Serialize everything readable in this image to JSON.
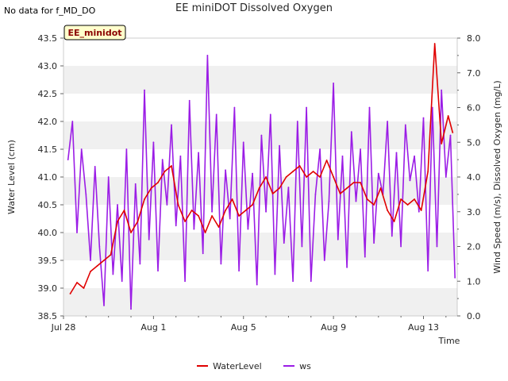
{
  "header": {
    "no_data_note": "No data for f_MD_DO",
    "title": "EE miniDOT Dissolved Oxygen"
  },
  "chart_data": {
    "type": "line",
    "title": "EE miniDOT Dissolved Oxygen",
    "badge": "EE_minidot",
    "xlabel": "Time",
    "ylabel_left": "Water Level (cm)",
    "ylabel_right": "Wind Speed (m/s), Dissolved Oxygen (mg/L)",
    "x_ticks": [
      "Jul 28",
      "Aug 1",
      "Aug 5",
      "Aug 9",
      "Aug 13"
    ],
    "x_range_days": [
      0,
      17.5
    ],
    "ylim_left": [
      38.5,
      43.5
    ],
    "ylim_right": [
      0.0,
      8.0
    ],
    "y_ticks_left": [
      "38.5",
      "39.0",
      "39.5",
      "40.0",
      "40.5",
      "41.0",
      "41.5",
      "42.0",
      "42.5",
      "43.0",
      "43.5"
    ],
    "y_ticks_right": [
      "0.0",
      "1.0",
      "2.0",
      "3.0",
      "4.0",
      "5.0",
      "6.0",
      "7.0",
      "8.0"
    ],
    "grid": "horizontal bands",
    "legend_position": "bottom-center",
    "colors": {
      "WaterLevel": "#e00000",
      "ws": "#9b1de6",
      "band": "#f0f0f0",
      "badge_bg": "#ffffcc",
      "badge_text": "#8b0000"
    },
    "series": [
      {
        "name": "WaterLevel",
        "axis": "left",
        "x": [
          0.3,
          0.6,
          0.9,
          1.2,
          1.5,
          1.8,
          2.1,
          2.4,
          2.7,
          3.0,
          3.3,
          3.6,
          3.9,
          4.2,
          4.5,
          4.8,
          5.1,
          5.4,
          5.7,
          6.0,
          6.3,
          6.6,
          6.9,
          7.2,
          7.5,
          7.8,
          8.1,
          8.4,
          8.7,
          9.0,
          9.3,
          9.6,
          9.9,
          10.2,
          10.5,
          10.8,
          11.1,
          11.4,
          11.7,
          12.0,
          12.3,
          12.6,
          12.9,
          13.2,
          13.5,
          13.8,
          14.1,
          14.4,
          14.7,
          15.0,
          15.3,
          15.6,
          15.9,
          16.2,
          16.5,
          16.8,
          17.1,
          17.3
        ],
        "values": [
          38.9,
          39.1,
          39.0,
          39.3,
          39.4,
          39.5,
          39.6,
          40.2,
          40.4,
          40.0,
          40.2,
          40.6,
          40.8,
          40.9,
          41.1,
          41.2,
          40.5,
          40.2,
          40.4,
          40.3,
          40.0,
          40.3,
          40.1,
          40.4,
          40.6,
          40.3,
          40.4,
          40.5,
          40.8,
          41.0,
          40.7,
          40.8,
          41.0,
          41.1,
          41.2,
          41.0,
          41.1,
          41.0,
          41.3,
          41.0,
          40.7,
          40.8,
          40.9,
          40.9,
          40.6,
          40.5,
          40.8,
          40.4,
          40.2,
          40.6,
          40.5,
          40.6,
          40.4,
          41.1,
          43.4,
          41.6,
          42.1,
          41.8
        ]
      },
      {
        "name": "ws",
        "axis": "right",
        "x": [
          0.2,
          0.4,
          0.6,
          0.8,
          1.0,
          1.2,
          1.4,
          1.6,
          1.8,
          2.0,
          2.2,
          2.4,
          2.6,
          2.8,
          3.0,
          3.2,
          3.4,
          3.6,
          3.8,
          4.0,
          4.2,
          4.4,
          4.6,
          4.8,
          5.0,
          5.2,
          5.4,
          5.6,
          5.8,
          6.0,
          6.2,
          6.4,
          6.6,
          6.8,
          7.0,
          7.2,
          7.4,
          7.6,
          7.8,
          8.0,
          8.2,
          8.4,
          8.6,
          8.8,
          9.0,
          9.2,
          9.4,
          9.6,
          9.8,
          10.0,
          10.2,
          10.4,
          10.6,
          10.8,
          11.0,
          11.2,
          11.4,
          11.6,
          11.8,
          12.0,
          12.2,
          12.4,
          12.6,
          12.8,
          13.0,
          13.2,
          13.4,
          13.6,
          13.8,
          14.0,
          14.2,
          14.4,
          14.6,
          14.8,
          15.0,
          15.2,
          15.4,
          15.6,
          15.8,
          16.0,
          16.2,
          16.4,
          16.6,
          16.8,
          17.0,
          17.2,
          17.4
        ],
        "values": [
          4.5,
          5.6,
          2.4,
          4.8,
          3.5,
          1.6,
          4.3,
          2.0,
          0.3,
          4.0,
          1.2,
          3.2,
          1.0,
          4.8,
          0.2,
          3.8,
          1.5,
          6.5,
          2.2,
          5.0,
          1.3,
          4.5,
          3.2,
          5.5,
          2.6,
          4.6,
          1.0,
          6.2,
          2.5,
          4.7,
          1.8,
          7.5,
          3.0,
          5.8,
          1.5,
          4.2,
          2.8,
          6.0,
          1.3,
          5.0,
          2.5,
          4.1,
          0.9,
          5.2,
          3.0,
          5.8,
          1.2,
          4.9,
          2.1,
          3.7,
          1.0,
          5.6,
          2.0,
          6.0,
          1.0,
          3.5,
          4.8,
          1.6,
          3.3,
          6.7,
          2.2,
          4.6,
          1.4,
          5.3,
          3.3,
          4.8,
          1.7,
          6.0,
          2.1,
          4.1,
          3.5,
          5.6,
          2.3,
          4.7,
          2.0,
          5.5,
          3.9,
          4.6,
          3.0,
          5.7,
          1.3,
          6.0,
          2.0,
          6.5,
          4.0,
          5.2,
          1.1
        ]
      }
    ]
  }
}
